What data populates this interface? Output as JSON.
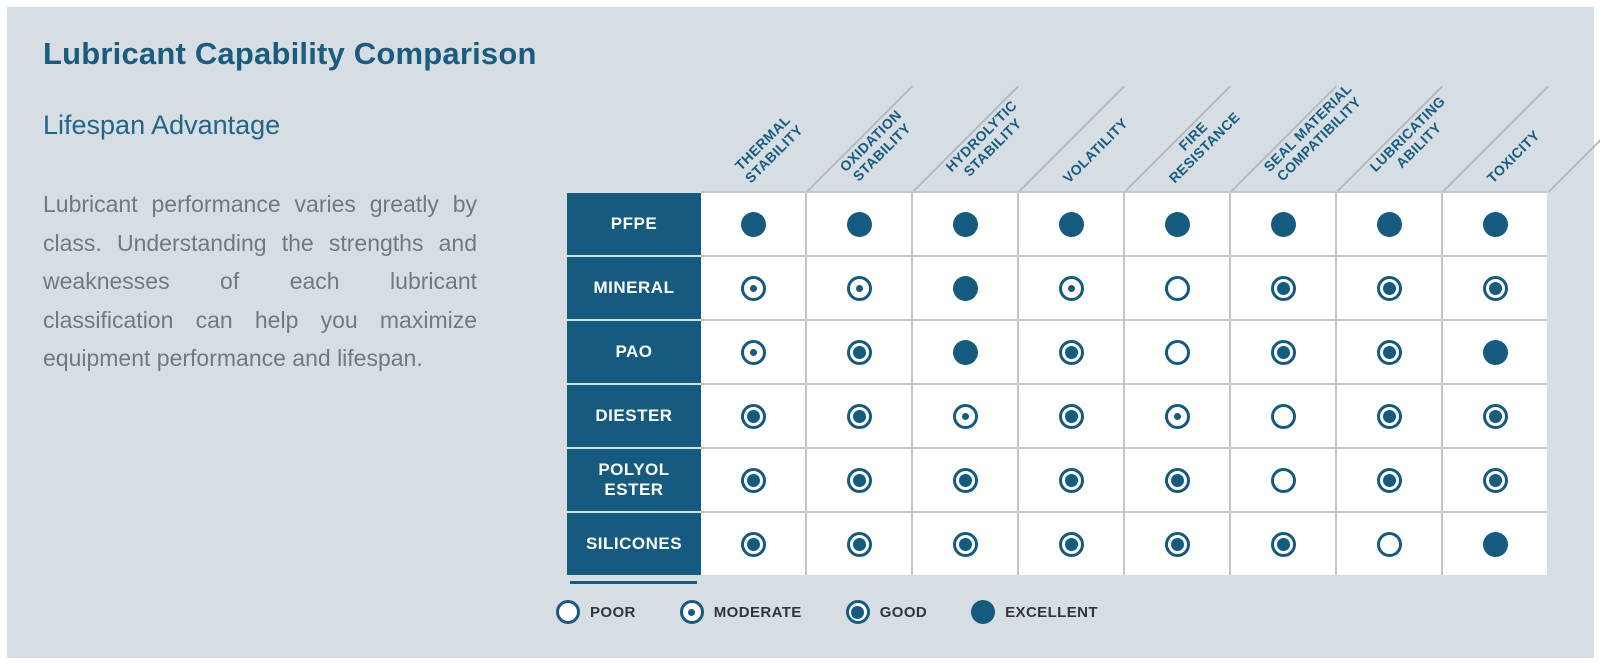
{
  "header": {
    "title": "Lubricant Capability Comparison",
    "subtitle": "Lifespan Advantage",
    "paragraph": "Lubricant performance varies greatly by class. Understanding the strengths and weaknesses of each lubricant classification can help you maximize equipment performance and lifespan."
  },
  "chart_data": {
    "type": "table",
    "title": "Lubricant Capability Comparison",
    "columns": [
      "THERMAL\nSTABILITY",
      "OXIDATION\nSTABILITY",
      "HYDROLYTIC\nSTABILITY",
      "VOLATILITY",
      "FIRE\nRESISTANCE",
      "SEAL MATERIAL\nCOMPATIBILITY",
      "LUBRICATING\nABILITY",
      "TOXICITY"
    ],
    "rating_scale": [
      "poor",
      "moderate",
      "good",
      "excellent"
    ],
    "rows": [
      {
        "name": "PFPE",
        "ratings": [
          "excellent",
          "excellent",
          "excellent",
          "excellent",
          "excellent",
          "excellent",
          "excellent",
          "excellent"
        ]
      },
      {
        "name": "MINERAL",
        "ratings": [
          "moderate",
          "moderate",
          "excellent",
          "moderate",
          "poor",
          "good",
          "good",
          "good"
        ]
      },
      {
        "name": "PAO",
        "ratings": [
          "moderate",
          "good",
          "excellent",
          "good",
          "poor",
          "good",
          "good",
          "excellent"
        ]
      },
      {
        "name": "DIESTER",
        "ratings": [
          "good",
          "good",
          "moderate",
          "good",
          "moderate",
          "poor",
          "good",
          "good"
        ]
      },
      {
        "name": "POLYOL ESTER",
        "ratings": [
          "good",
          "good",
          "good",
          "good",
          "good",
          "poor",
          "good",
          "good"
        ]
      },
      {
        "name": "SILICONES",
        "ratings": [
          "good",
          "good",
          "good",
          "good",
          "good",
          "good",
          "poor",
          "excellent"
        ]
      }
    ],
    "legend": [
      {
        "label": "POOR",
        "symbol": "poor"
      },
      {
        "label": "MODERATE",
        "symbol": "moderate"
      },
      {
        "label": "GOOD",
        "symbol": "good"
      },
      {
        "label": "EXCELLENT",
        "symbol": "excellent"
      }
    ]
  },
  "colors": {
    "accent_blue": "#155a7f",
    "title_blue": "#1a5c80",
    "subtitle_blue": "#236489",
    "body_gray": "#73787e",
    "panel_background": "#d6dee4",
    "grid_line": "#c3c7ca"
  }
}
